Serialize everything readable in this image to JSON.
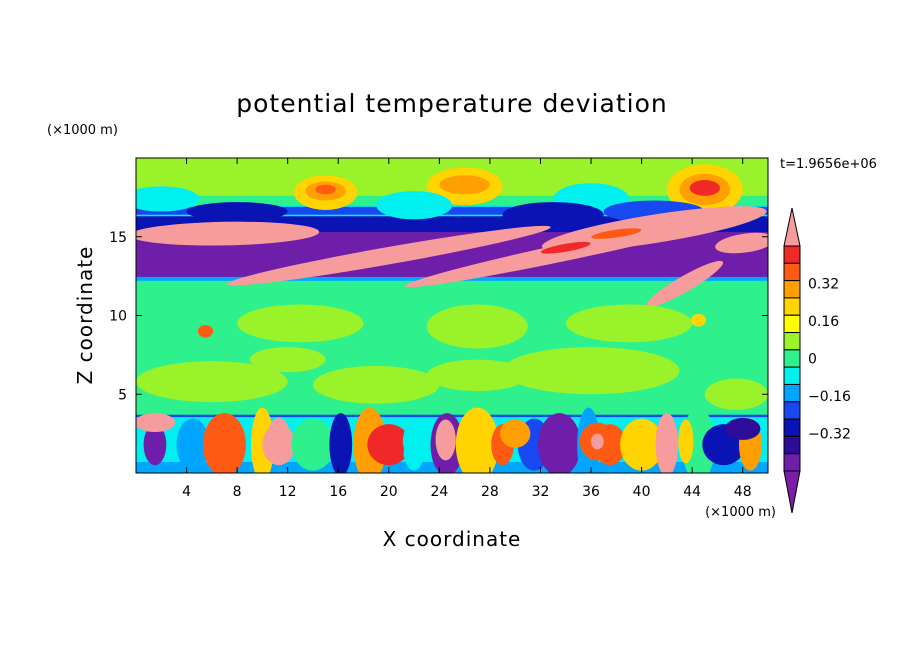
{
  "chart_data": {
    "type": "heatmap",
    "title": "potential temperature deviation",
    "xlabel": "X coordinate",
    "ylabel": "Z coordinate",
    "x_unit": "(×1000 m)",
    "z_unit": "(×1000 m)",
    "time_label": "t=1.9656e+06",
    "xlim": [
      0,
      50
    ],
    "ylim": [
      0,
      20
    ],
    "x_ticks": [
      4,
      8,
      12,
      16,
      20,
      24,
      28,
      32,
      36,
      40,
      44,
      48
    ],
    "z_ticks": [
      5,
      10,
      15
    ],
    "colorbar": {
      "levels": [
        -0.48,
        -0.4,
        -0.32,
        -0.24,
        -0.16,
        -0.08,
        0,
        0.08,
        0.16,
        0.24,
        0.32,
        0.4,
        0.48
      ],
      "tick_labels": [
        "0.32",
        "0.16",
        "0",
        "−0.16",
        "−0.32"
      ],
      "tick_values": [
        0.32,
        0.16,
        0,
        -0.16,
        -0.32
      ],
      "colors": [
        "#f69c9c",
        "#f02828",
        "#ff5a14",
        "#ff9f00",
        "#ffd400",
        "#ffff00",
        "#99f22a",
        "#2ef08c",
        "#00f0f0",
        "#00a6ff",
        "#1848f0",
        "#0a14b4",
        "#2c0c98",
        "#6e1ea8",
        "#7a1ea8"
      ],
      "extend": "both"
    }
  }
}
